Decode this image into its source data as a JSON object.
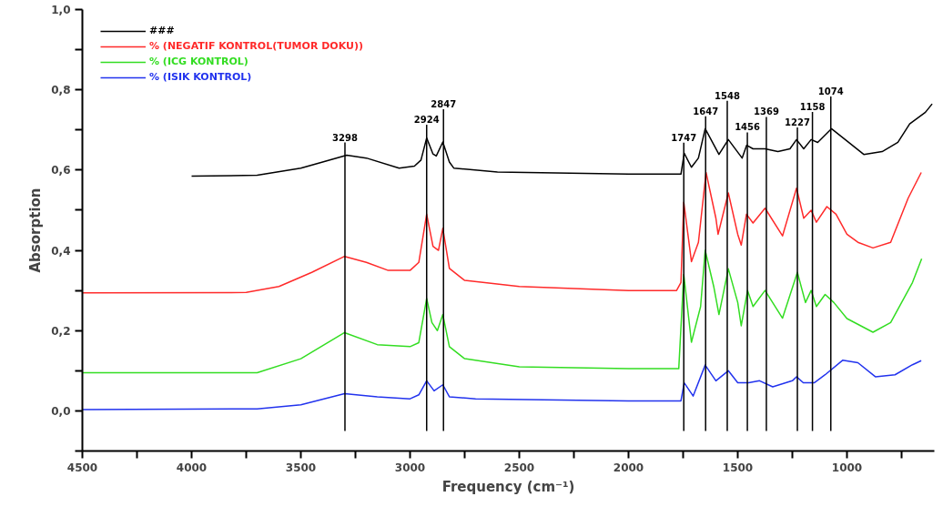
{
  "chart_data": {
    "type": "line",
    "xlabel": "Frequency (cm⁻¹)",
    "ylabel": "Absorption",
    "xlim": [
      4500,
      600
    ],
    "ylim": [
      -0.1,
      1.0
    ],
    "xticks": [
      {
        "value": 4500,
        "label": "4500"
      },
      {
        "value": 4250,
        "label": null
      },
      {
        "value": 4000,
        "label": "4000"
      },
      {
        "value": 3750,
        "label": null
      },
      {
        "value": 3500,
        "label": "3500"
      },
      {
        "value": 3250,
        "label": null
      },
      {
        "value": 3000,
        "label": "3000"
      },
      {
        "value": 2750,
        "label": null
      },
      {
        "value": 2500,
        "label": "2500"
      },
      {
        "value": 2250,
        "label": null
      },
      {
        "value": 2000,
        "label": "2000"
      },
      {
        "value": 1750,
        "label": null
      },
      {
        "value": 1500,
        "label": "1500"
      },
      {
        "value": 1250,
        "label": null
      },
      {
        "value": 1000,
        "label": "1000"
      },
      {
        "value": 750,
        "label": null
      }
    ],
    "yticks": [
      {
        "value": -0.1,
        "label": null
      },
      {
        "value": 0.0,
        "label": "0,0"
      },
      {
        "value": 0.1,
        "label": null
      },
      {
        "value": 0.2,
        "label": "0,2"
      },
      {
        "value": 0.3,
        "label": null
      },
      {
        "value": 0.4,
        "label": "0,4"
      },
      {
        "value": 0.5,
        "label": null
      },
      {
        "value": 0.6,
        "label": "0,6"
      },
      {
        "value": 0.7,
        "label": null
      },
      {
        "value": 0.8,
        "label": "0,8"
      },
      {
        "value": 0.9,
        "label": null
      },
      {
        "value": 1.0,
        "label": "1,0"
      }
    ],
    "legend": "top left",
    "grid": false,
    "marker": "none",
    "line_style": "solid",
    "series": [
      {
        "name": "###",
        "color": "#000000",
        "x": [
          4000,
          3700,
          3500,
          3400,
          3290,
          3200,
          3050,
          2980,
          2950,
          2924,
          2895,
          2880,
          2850,
          2820,
          2800,
          2600,
          2000,
          1760,
          1745,
          1712,
          1680,
          1649,
          1586,
          1543,
          1480,
          1459,
          1430,
          1375,
          1316,
          1261,
          1231,
          1198,
          1164,
          1134,
          1071,
          1008,
          923,
          839,
          767,
          713,
          641,
          610
        ],
        "values": [
          0.585,
          0.587,
          0.605,
          0.62,
          0.637,
          0.63,
          0.605,
          0.61,
          0.625,
          0.68,
          0.64,
          0.635,
          0.67,
          0.62,
          0.605,
          0.595,
          0.59,
          0.59,
          0.642,
          0.607,
          0.63,
          0.703,
          0.639,
          0.676,
          0.63,
          0.662,
          0.653,
          0.653,
          0.646,
          0.653,
          0.676,
          0.653,
          0.676,
          0.669,
          0.703,
          0.676,
          0.639,
          0.646,
          0.669,
          0.715,
          0.744,
          0.765
        ]
      },
      {
        "name": "% (NEGATIF KONTROL(TUMOR DOKU))",
        "color": "#ff2a2a",
        "x": [
          4500,
          3750,
          3600,
          3450,
          3300,
          3200,
          3100,
          3000,
          2960,
          2924,
          2895,
          2870,
          2850,
          2820,
          2750,
          2500,
          2000,
          1780,
          1760,
          1747,
          1712,
          1680,
          1645,
          1600,
          1590,
          1543,
          1500,
          1484,
          1460,
          1430,
          1375,
          1295,
          1231,
          1198,
          1164,
          1140,
          1092,
          1050,
          1000,
          950,
          881,
          800,
          720,
          660
        ],
        "values": [
          0.294,
          0.295,
          0.31,
          0.345,
          0.385,
          0.37,
          0.35,
          0.35,
          0.37,
          0.49,
          0.41,
          0.4,
          0.455,
          0.355,
          0.325,
          0.31,
          0.3,
          0.3,
          0.32,
          0.52,
          0.372,
          0.42,
          0.594,
          0.48,
          0.44,
          0.543,
          0.44,
          0.413,
          0.49,
          0.468,
          0.505,
          0.436,
          0.555,
          0.48,
          0.5,
          0.47,
          0.509,
          0.49,
          0.44,
          0.42,
          0.406,
          0.42,
          0.53,
          0.594
        ]
      },
      {
        "name": "% (ICG KONTROL)",
        "color": "#33dd22",
        "x": [
          4500,
          3700,
          3500,
          3300,
          3150,
          3000,
          2960,
          2924,
          2900,
          2875,
          2850,
          2820,
          2750,
          2500,
          2000,
          1770,
          1747,
          1712,
          1670,
          1649,
          1610,
          1586,
          1543,
          1500,
          1484,
          1455,
          1430,
          1375,
          1295,
          1227,
          1190,
          1164,
          1140,
          1100,
          1060,
          1000,
          881,
          800,
          700,
          658
        ],
        "values": [
          0.095,
          0.095,
          0.13,
          0.195,
          0.165,
          0.16,
          0.17,
          0.28,
          0.22,
          0.2,
          0.24,
          0.16,
          0.13,
          0.11,
          0.105,
          0.105,
          0.34,
          0.171,
          0.26,
          0.4,
          0.31,
          0.24,
          0.354,
          0.27,
          0.212,
          0.3,
          0.26,
          0.3,
          0.231,
          0.345,
          0.27,
          0.3,
          0.26,
          0.29,
          0.27,
          0.23,
          0.196,
          0.22,
          0.32,
          0.379
        ]
      },
      {
        "name": "% (ISIK KONTROL)",
        "color": "#2233ee",
        "x": [
          4500,
          3700,
          3500,
          3300,
          3150,
          3000,
          2960,
          2924,
          2890,
          2850,
          2820,
          2700,
          2000,
          1760,
          1745,
          1704,
          1649,
          1600,
          1543,
          1500,
          1450,
          1400,
          1340,
          1250,
          1231,
          1200,
          1150,
          1100,
          1020,
          950,
          870,
          780,
          700,
          660
        ],
        "values": [
          0.003,
          0.005,
          0.015,
          0.043,
          0.035,
          0.03,
          0.04,
          0.075,
          0.05,
          0.065,
          0.035,
          0.03,
          0.025,
          0.025,
          0.07,
          0.037,
          0.114,
          0.075,
          0.1,
          0.07,
          0.07,
          0.075,
          0.06,
          0.075,
          0.085,
          0.07,
          0.07,
          0.09,
          0.126,
          0.12,
          0.085,
          0.09,
          0.115,
          0.125
        ]
      }
    ],
    "ref_lines": [
      {
        "axis": "x",
        "value": 3298,
        "label": "3298"
      },
      {
        "axis": "x",
        "value": 2924,
        "label": "2924"
      },
      {
        "axis": "x",
        "value": 2847,
        "label": "2847"
      },
      {
        "axis": "x",
        "value": 1747,
        "label": "1747"
      },
      {
        "axis": "x",
        "value": 1647,
        "label": "1647"
      },
      {
        "axis": "x",
        "value": 1548,
        "label": "1548"
      },
      {
        "axis": "x",
        "value": 1456,
        "label": "1456"
      },
      {
        "axis": "x",
        "value": 1369,
        "label": "1369"
      },
      {
        "axis": "x",
        "value": 1227,
        "label": "1227"
      },
      {
        "axis": "x",
        "value": 1158,
        "label": "1158"
      },
      {
        "axis": "x",
        "value": 1074,
        "label": "1074"
      }
    ]
  }
}
